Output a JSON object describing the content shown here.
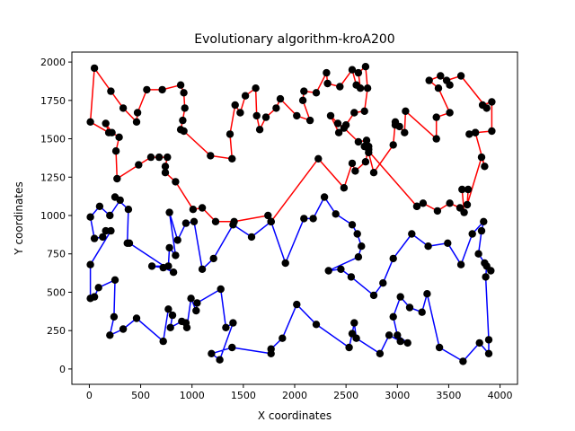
{
  "chart_data": {
    "type": "line",
    "title": "Evolutionary algorithm-kroA200",
    "xlabel": "X coordinates",
    "ylabel": "Y coordinates",
    "xlim": [
      -170,
      4170
    ],
    "ylim": [
      -100,
      2065
    ],
    "xticks": [
      0,
      500,
      1000,
      1500,
      2000,
      2500,
      3000,
      3500,
      4000
    ],
    "yticks": [
      0,
      250,
      500,
      750,
      1000,
      1250,
      1500,
      1750,
      2000
    ],
    "grid": false,
    "legend": "none",
    "series": [
      {
        "color": "#ff0000",
        "points": [
          [
            1770,
            960
          ],
          [
            1740,
            1000
          ],
          [
            1410,
            960
          ],
          [
            1230,
            960
          ],
          [
            1100,
            1050
          ],
          [
            1010,
            1040
          ],
          [
            840,
            1220
          ],
          [
            740,
            1280
          ],
          [
            740,
            1320
          ],
          [
            760,
            1380
          ],
          [
            680,
            1380
          ],
          [
            600,
            1380
          ],
          [
            480,
            1330
          ],
          [
            270,
            1240
          ],
          [
            260,
            1420
          ],
          [
            290,
            1510
          ],
          [
            220,
            1540
          ],
          [
            160,
            1600
          ],
          [
            190,
            1540
          ],
          [
            10,
            1610
          ],
          [
            50,
            1960
          ],
          [
            210,
            1810
          ],
          [
            330,
            1700
          ],
          [
            460,
            1610
          ],
          [
            470,
            1670
          ],
          [
            560,
            1820
          ],
          [
            710,
            1820
          ],
          [
            890,
            1850
          ],
          [
            920,
            1800
          ],
          [
            930,
            1700
          ],
          [
            910,
            1620
          ],
          [
            890,
            1560
          ],
          [
            920,
            1550
          ],
          [
            1180,
            1390
          ],
          [
            1390,
            1370
          ],
          [
            1370,
            1530
          ],
          [
            1420,
            1720
          ],
          [
            1470,
            1670
          ],
          [
            1520,
            1780
          ],
          [
            1620,
            1830
          ],
          [
            1630,
            1650
          ],
          [
            1660,
            1560
          ],
          [
            1720,
            1640
          ],
          [
            1820,
            1700
          ],
          [
            1860,
            1760
          ],
          [
            2020,
            1650
          ],
          [
            2150,
            1620
          ],
          [
            2080,
            1750
          ],
          [
            2090,
            1810
          ],
          [
            2210,
            1800
          ],
          [
            2310,
            1930
          ],
          [
            2320,
            1860
          ],
          [
            2440,
            1840
          ],
          [
            2560,
            1950
          ],
          [
            2600,
            1850
          ],
          [
            2640,
            1830
          ],
          [
            2620,
            1930
          ],
          [
            2690,
            1970
          ],
          [
            2710,
            1830
          ],
          [
            2680,
            1680
          ],
          [
            2580,
            1670
          ],
          [
            2500,
            1590
          ],
          [
            2430,
            1540
          ],
          [
            2350,
            1650
          ],
          [
            2420,
            1600
          ],
          [
            2480,
            1570
          ],
          [
            2620,
            1480
          ],
          [
            2700,
            1490
          ],
          [
            2720,
            1430
          ],
          [
            2720,
            1450
          ],
          [
            2690,
            1350
          ],
          [
            2590,
            1290
          ],
          [
            2560,
            1340
          ],
          [
            2480,
            1180
          ],
          [
            2230,
            1370
          ],
          [
            1770,
            960
          ]
        ]
      },
      {
        "color": "#ff0000",
        "points": [
          [
            3190,
            1060
          ],
          [
            3250,
            1080
          ],
          [
            3390,
            1030
          ],
          [
            3510,
            1080
          ],
          [
            3610,
            1050
          ],
          [
            3650,
            1020
          ],
          [
            3630,
            1170
          ],
          [
            3690,
            1170
          ],
          [
            3680,
            1070
          ],
          [
            3820,
            1380
          ],
          [
            3850,
            1320
          ],
          [
            3760,
            1540
          ],
          [
            3700,
            1530
          ],
          [
            3760,
            1540
          ],
          [
            3920,
            1550
          ],
          [
            3920,
            1740
          ],
          [
            3830,
            1720
          ],
          [
            3870,
            1700
          ],
          [
            3620,
            1910
          ],
          [
            3480,
            1880
          ],
          [
            3510,
            1850
          ],
          [
            3420,
            1910
          ],
          [
            3310,
            1880
          ],
          [
            3400,
            1830
          ],
          [
            3510,
            1670
          ],
          [
            3380,
            1640
          ],
          [
            3380,
            1500
          ],
          [
            3080,
            1680
          ],
          [
            3070,
            1540
          ],
          [
            3020,
            1580
          ],
          [
            2980,
            1590
          ],
          [
            2980,
            1610
          ],
          [
            2960,
            1460
          ],
          [
            2770,
            1280
          ],
          [
            2720,
            1410
          ],
          [
            2680,
            1450
          ],
          [
            3190,
            1060
          ]
        ]
      },
      {
        "color": "#0000ff",
        "points": [
          [
            1770,
            960
          ],
          [
            1580,
            860
          ],
          [
            1400,
            940
          ],
          [
            1210,
            720
          ],
          [
            1100,
            650
          ],
          [
            1020,
            960
          ],
          [
            940,
            950
          ],
          [
            860,
            840
          ],
          [
            780,
            1020
          ],
          [
            840,
            740
          ],
          [
            780,
            790
          ],
          [
            770,
            670
          ],
          [
            610,
            670
          ],
          [
            720,
            660
          ],
          [
            820,
            630
          ],
          [
            390,
            820
          ],
          [
            370,
            820
          ],
          [
            380,
            1040
          ],
          [
            250,
            1120
          ],
          [
            300,
            1100
          ],
          [
            200,
            1000
          ],
          [
            100,
            1060
          ],
          [
            10,
            990
          ],
          [
            50,
            850
          ],
          [
            130,
            860
          ],
          [
            160,
            900
          ],
          [
            210,
            900
          ],
          [
            10,
            680
          ],
          [
            10,
            460
          ],
          [
            50,
            470
          ],
          [
            90,
            530
          ],
          [
            250,
            580
          ],
          [
            240,
            340
          ],
          [
            200,
            220
          ],
          [
            330,
            260
          ],
          [
            460,
            330
          ],
          [
            720,
            180
          ],
          [
            770,
            390
          ],
          [
            810,
            350
          ],
          [
            790,
            270
          ],
          [
            900,
            310
          ],
          [
            940,
            300
          ],
          [
            950,
            270
          ],
          [
            990,
            460
          ],
          [
            1040,
            380
          ],
          [
            1050,
            430
          ],
          [
            1280,
            520
          ],
          [
            1330,
            270
          ],
          [
            1400,
            300
          ],
          [
            1270,
            60
          ],
          [
            1190,
            100
          ],
          [
            1390,
            140
          ],
          [
            1770,
            100
          ],
          [
            1770,
            130
          ],
          [
            1880,
            200
          ],
          [
            2020,
            420
          ],
          [
            2210,
            290
          ],
          [
            2530,
            140
          ],
          [
            2560,
            230
          ],
          [
            2580,
            300
          ],
          [
            2600,
            200
          ],
          [
            2830,
            100
          ],
          [
            2920,
            220
          ],
          [
            3030,
            180
          ],
          [
            3100,
            170
          ],
          [
            3000,
            220
          ],
          [
            2960,
            340
          ],
          [
            3030,
            470
          ],
          [
            3120,
            400
          ],
          [
            3240,
            370
          ],
          [
            3290,
            490
          ],
          [
            3410,
            140
          ],
          [
            3640,
            50
          ],
          [
            3800,
            170
          ],
          [
            3890,
            100
          ],
          [
            3890,
            190
          ],
          [
            3860,
            600
          ],
          [
            3870,
            670
          ],
          [
            3910,
            640
          ],
          [
            3850,
            690
          ],
          [
            3790,
            750
          ],
          [
            3820,
            900
          ],
          [
            3840,
            960
          ],
          [
            3730,
            880
          ],
          [
            3620,
            680
          ],
          [
            3490,
            820
          ],
          [
            3300,
            800
          ],
          [
            3140,
            880
          ],
          [
            2960,
            720
          ],
          [
            2860,
            560
          ],
          [
            2770,
            480
          ],
          [
            2550,
            600
          ],
          [
            2450,
            650
          ],
          [
            2330,
            640
          ],
          [
            2620,
            730
          ],
          [
            2650,
            800
          ],
          [
            2610,
            880
          ],
          [
            2560,
            940
          ],
          [
            2400,
            1010
          ],
          [
            2290,
            1120
          ],
          [
            2180,
            980
          ],
          [
            2090,
            980
          ],
          [
            1910,
            690
          ],
          [
            1770,
            960
          ]
        ]
      }
    ]
  }
}
